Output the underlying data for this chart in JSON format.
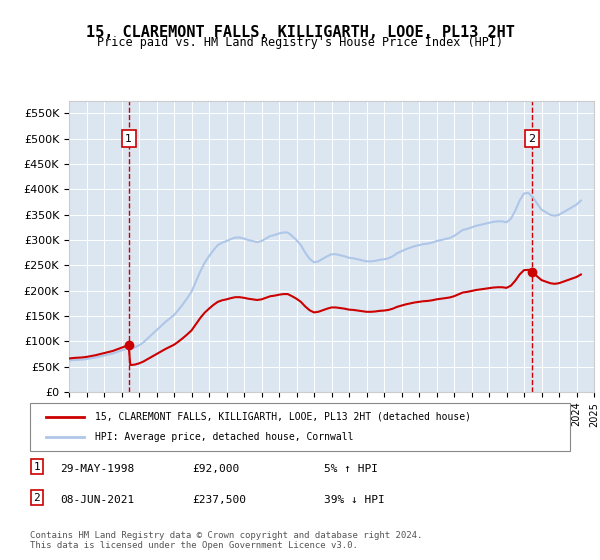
{
  "title": "15, CLAREMONT FALLS, KILLIGARTH, LOOE, PL13 2HT",
  "subtitle": "Price paid vs. HM Land Registry's House Price Index (HPI)",
  "ylim": [
    0,
    575000
  ],
  "yticks": [
    0,
    50000,
    100000,
    150000,
    200000,
    250000,
    300000,
    350000,
    400000,
    450000,
    500000,
    550000
  ],
  "ytick_labels": [
    "£0",
    "£50K",
    "£100K",
    "£150K",
    "£200K",
    "£250K",
    "£300K",
    "£350K",
    "£400K",
    "£450K",
    "£500K",
    "£550K"
  ],
  "background_color": "#dce6f1",
  "plot_bg_color": "#dce6f1",
  "hpi_color": "#aec6e8",
  "sale_color": "#cc0000",
  "marker1_x": 1998.41,
  "marker1_y": 92000,
  "marker2_x": 2021.44,
  "marker2_y": 237500,
  "legend_sale": "15, CLAREMONT FALLS, KILLIGARTH, LOOE, PL13 2HT (detached house)",
  "legend_hpi": "HPI: Average price, detached house, Cornwall",
  "note1_date": "29-MAY-1998",
  "note1_price": "£92,000",
  "note1_hpi": "5% ↑ HPI",
  "note2_date": "08-JUN-2021",
  "note2_price": "£237,500",
  "note2_hpi": "39% ↓ HPI",
  "footer": "Contains HM Land Registry data © Crown copyright and database right 2024.\nThis data is licensed under the Open Government Licence v3.0.",
  "hpi_years": [
    1995.0,
    1995.25,
    1995.5,
    1995.75,
    1996.0,
    1996.25,
    1996.5,
    1996.75,
    1997.0,
    1997.25,
    1997.5,
    1997.75,
    1998.0,
    1998.25,
    1998.5,
    1998.75,
    1999.0,
    1999.25,
    1999.5,
    1999.75,
    2000.0,
    2000.25,
    2000.5,
    2000.75,
    2001.0,
    2001.25,
    2001.5,
    2001.75,
    2002.0,
    2002.25,
    2002.5,
    2002.75,
    2003.0,
    2003.25,
    2003.5,
    2003.75,
    2004.0,
    2004.25,
    2004.5,
    2004.75,
    2005.0,
    2005.25,
    2005.5,
    2005.75,
    2006.0,
    2006.25,
    2006.5,
    2006.75,
    2007.0,
    2007.25,
    2007.5,
    2007.75,
    2008.0,
    2008.25,
    2008.5,
    2008.75,
    2009.0,
    2009.25,
    2009.5,
    2009.75,
    2010.0,
    2010.25,
    2010.5,
    2010.75,
    2011.0,
    2011.25,
    2011.5,
    2011.75,
    2012.0,
    2012.25,
    2012.5,
    2012.75,
    2013.0,
    2013.25,
    2013.5,
    2013.75,
    2014.0,
    2014.25,
    2014.5,
    2014.75,
    2015.0,
    2015.25,
    2015.5,
    2015.75,
    2016.0,
    2016.25,
    2016.5,
    2016.75,
    2017.0,
    2017.25,
    2017.5,
    2017.75,
    2018.0,
    2018.25,
    2018.5,
    2018.75,
    2019.0,
    2019.25,
    2019.5,
    2019.75,
    2020.0,
    2020.25,
    2020.5,
    2020.75,
    2021.0,
    2021.25,
    2021.5,
    2021.75,
    2022.0,
    2022.25,
    2022.5,
    2022.75,
    2023.0,
    2023.25,
    2023.5,
    2023.75,
    2024.0,
    2024.25
  ],
  "hpi_values": [
    62000,
    63000,
    63500,
    64000,
    65000,
    66500,
    68000,
    70000,
    72000,
    74000,
    76000,
    79000,
    82000,
    85000,
    87000,
    88000,
    92000,
    98000,
    106000,
    114000,
    122000,
    130000,
    138000,
    145000,
    152000,
    162000,
    173000,
    185000,
    198000,
    218000,
    238000,
    255000,
    268000,
    280000,
    290000,
    295000,
    298000,
    302000,
    305000,
    305000,
    303000,
    300000,
    298000,
    296000,
    298000,
    303000,
    308000,
    310000,
    313000,
    315000,
    315000,
    308000,
    300000,
    290000,
    275000,
    263000,
    256000,
    258000,
    263000,
    268000,
    272000,
    272000,
    270000,
    268000,
    265000,
    264000,
    262000,
    260000,
    258000,
    258000,
    259000,
    261000,
    262000,
    264000,
    268000,
    274000,
    278000,
    282000,
    285000,
    288000,
    290000,
    292000,
    293000,
    295000,
    298000,
    300000,
    302000,
    304000,
    308000,
    314000,
    320000,
    322000,
    325000,
    328000,
    330000,
    332000,
    334000,
    336000,
    337000,
    337000,
    335000,
    342000,
    358000,
    378000,
    392000,
    393000,
    385000,
    372000,
    360000,
    355000,
    350000,
    348000,
    350000,
    355000,
    360000,
    365000,
    370000,
    378000
  ],
  "sale_years": [
    1998.41,
    2021.44
  ],
  "sale_values": [
    92000,
    237500
  ],
  "xmin": 1995,
  "xmax": 2025,
  "xticks": [
    1995,
    1996,
    1997,
    1998,
    1999,
    2000,
    2001,
    2002,
    2003,
    2004,
    2005,
    2006,
    2007,
    2008,
    2009,
    2010,
    2011,
    2012,
    2013,
    2014,
    2015,
    2016,
    2017,
    2018,
    2019,
    2020,
    2021,
    2022,
    2023,
    2024,
    2025
  ]
}
